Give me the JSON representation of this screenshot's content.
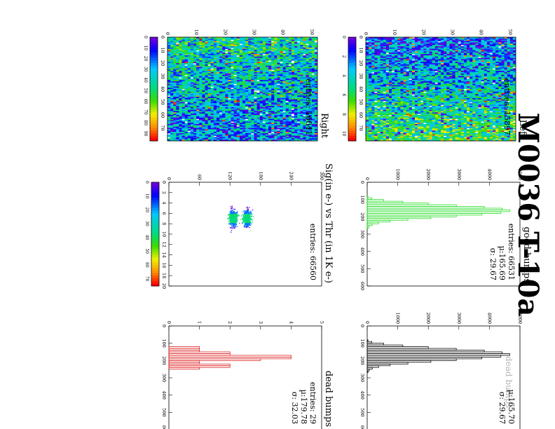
{
  "page": {
    "title": "M0036 T-10a"
  },
  "chart_data": [
    {
      "id": "all-bumps",
      "type": "histogram",
      "title": "",
      "label_overlay": "dead bumps",
      "color": "#000000",
      "stats": {
        "entries": "",
        "mu": "µ:165.70",
        "sigma": "σ: 29.67"
      },
      "xlim": [
        0,
        600
      ],
      "ylim": [
        0,
        6000
      ],
      "x_ticks": [
        "0",
        "100",
        "200",
        "300",
        "400",
        "500",
        "600"
      ],
      "y_ticks": [
        "0",
        "1000",
        "2000",
        "3000",
        "4000",
        "5000"
      ],
      "bin_width": 10,
      "x": [
        80,
        90,
        100,
        110,
        120,
        130,
        140,
        150,
        160,
        170,
        180,
        190,
        200,
        210,
        220,
        230,
        240,
        250,
        260
      ],
      "values": [
        30,
        180,
        650,
        1400,
        2400,
        3500,
        4600,
        5300,
        5600,
        5250,
        4500,
        3500,
        2500,
        1600,
        900,
        450,
        200,
        80,
        30
      ]
    },
    {
      "id": "good-bumps",
      "type": "histogram",
      "title": "good bumps",
      "color": "#22dd22",
      "stats": {
        "entries": "entries:  66531",
        "mu": "µ:165.69",
        "sigma": "σ: 29.67"
      },
      "xlim": [
        0,
        600
      ],
      "ylim": [
        0,
        6000
      ],
      "x_ticks": [
        "0",
        "100",
        "200",
        "300",
        "400",
        "500",
        "600"
      ],
      "y_ticks": [
        "0",
        "1000",
        "2000",
        "3000",
        "4000",
        "5000"
      ],
      "bin_width": 10,
      "x": [
        80,
        90,
        100,
        110,
        120,
        130,
        140,
        150,
        160,
        170,
        180,
        190,
        200,
        210,
        220,
        230,
        240,
        250,
        260
      ],
      "values": [
        30,
        180,
        650,
        1400,
        2400,
        3500,
        4600,
        5300,
        5600,
        5250,
        4500,
        3500,
        2500,
        1600,
        900,
        450,
        200,
        80,
        30
      ]
    },
    {
      "id": "dead-bumps",
      "type": "histogram",
      "title": "dead bumps",
      "color": "#dd2222",
      "stats": {
        "entries": "entries:   29",
        "mu": "µ:179.78",
        "sigma": "σ: 32.03"
      },
      "xlim": [
        0,
        600
      ],
      "ylim": [
        0,
        5
      ],
      "x_ticks": [
        "0",
        "100",
        "200",
        "300",
        "400",
        "500",
        "600"
      ],
      "y_ticks": [
        "0",
        "1",
        "2",
        "3",
        "4",
        "5"
      ],
      "bin_width": 10,
      "x": [
        120,
        130,
        140,
        150,
        160,
        170,
        180,
        190,
        200,
        210,
        220,
        230,
        240
      ],
      "values": [
        1,
        1,
        1,
        2,
        2,
        4,
        4,
        3,
        1,
        1,
        2,
        2,
        1
      ]
    },
    {
      "id": "sig-vs-thr",
      "type": "scatter",
      "title": "Sig(in e-) vs Thr (in 1K e-)",
      "stats": {
        "entries": "entries:  66560"
      },
      "xlim": [
        0,
        20
      ],
      "ylim": [
        0,
        330
      ],
      "x_ticks": [
        "0",
        "2",
        "4",
        "6",
        "8",
        "10",
        "12",
        "14",
        "16",
        "18",
        "20"
      ],
      "y_ticks": [
        "0",
        "60",
        "120",
        "180",
        "240",
        "300"
      ],
      "z_ticks": [
        "0",
        "10",
        "20",
        "30",
        "40",
        "50",
        "60",
        "70"
      ],
      "clusters": [
        {
          "thr_center": 6.9,
          "sig_center": 170,
          "thr_spread": 1.6,
          "sig_spread": 6
        },
        {
          "thr_center": 6.9,
          "sig_center": 140,
          "thr_spread": 1.6,
          "sig_spread": 6
        }
      ]
    },
    {
      "id": "left-map",
      "type": "heatmap",
      "title": "Left",
      "stats": {
        "entries": "entries: 15897"
      },
      "cols": 80,
      "rows": 52,
      "x_ticks": [
        "0",
        "10",
        "20",
        "30",
        "40",
        "50",
        "60",
        "70"
      ],
      "y_ticks": [
        "0",
        "10",
        "20",
        "30",
        "40",
        "50"
      ],
      "z_ticks": [
        "0",
        "2",
        "4",
        "6",
        "8",
        "10"
      ],
      "zmax": 11
    },
    {
      "id": "right-map",
      "type": "heatmap",
      "title": "Right",
      "stats": {
        "entries": "entries: 16041"
      },
      "cols": 80,
      "rows": 52,
      "x_ticks": [
        "0",
        "10",
        "20",
        "30",
        "40",
        "50",
        "60",
        "70"
      ],
      "y_ticks": [
        "0",
        "10",
        "20",
        "30",
        "40",
        "50"
      ],
      "z_ticks": [
        "0",
        "10",
        "20",
        "30",
        "40",
        "50",
        "60",
        "70",
        "80",
        "90"
      ],
      "zmax": 95
    }
  ]
}
